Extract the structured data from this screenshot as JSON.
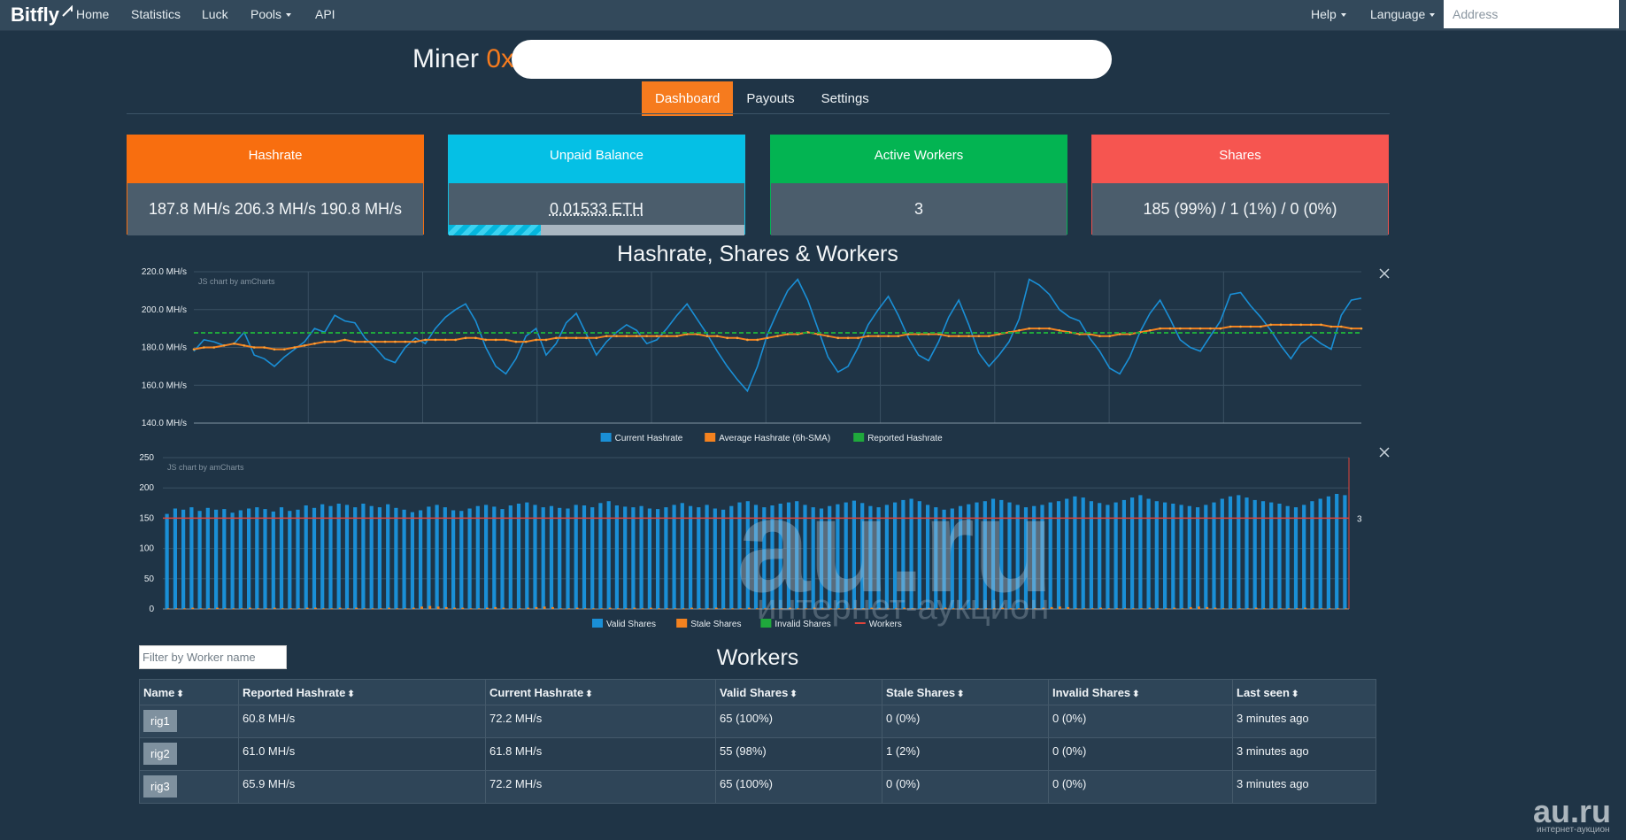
{
  "nav": {
    "brand": "Bitfly",
    "home": "Home",
    "statistics": "Statistics",
    "luck": "Luck",
    "pools": "Pools",
    "api": "API",
    "help": "Help",
    "language": "Language",
    "address_placeholder": "Address"
  },
  "miner": {
    "label": "Miner",
    "address_prefix": "0x"
  },
  "tabs": {
    "dashboard": "Dashboard",
    "payouts": "Payouts",
    "settings": "Settings"
  },
  "stats": {
    "hashrate": {
      "title": "Hashrate",
      "value": "187.8 MH/s 206.3 MH/s 190.8 MH/s"
    },
    "balance": {
      "title": "Unpaid Balance",
      "value": "0.01533 ETH",
      "progress": 0.31
    },
    "workers": {
      "title": "Active Workers",
      "value": "3"
    },
    "shares": {
      "title": "Shares",
      "value": "185 (99%) / 1 (1%) / 0 (0%)"
    }
  },
  "chart_section_title": "Hashrate, Shares & Workers",
  "chart_credit": "JS chart by amCharts",
  "chart_data": [
    {
      "type": "line",
      "ylim": [
        140,
        220
      ],
      "y_ticks": [
        "220.0 MH/s",
        "200.0 MH/s",
        "180.0 MH/s",
        "160.0 MH/s",
        "140.0 MH/s"
      ],
      "series": [
        {
          "name": "Current Hashrate",
          "color": "#1a8fd6",
          "values": [
            178,
            184,
            183,
            181,
            182,
            188,
            176,
            174,
            170,
            175,
            179,
            183,
            190,
            188,
            197,
            194,
            193,
            185,
            180,
            174,
            172,
            180,
            185,
            182,
            190,
            196,
            200,
            203,
            194,
            180,
            170,
            166,
            174,
            186,
            190,
            176,
            182,
            193,
            198,
            187,
            176,
            183,
            188,
            192,
            189,
            182,
            184,
            190,
            197,
            203,
            195,
            187,
            178,
            170,
            163,
            157,
            170,
            187,
            199,
            210,
            216,
            205,
            190,
            175,
            167,
            170,
            180,
            192,
            200,
            207,
            197,
            185,
            176,
            173,
            183,
            196,
            205,
            192,
            177,
            170,
            176,
            183,
            195,
            216,
            213,
            208,
            200,
            196,
            194,
            185,
            178,
            169,
            166,
            175,
            188,
            198,
            205,
            195,
            184,
            180,
            178,
            186,
            194,
            208,
            209,
            202,
            196,
            189,
            181,
            174,
            182,
            186,
            182,
            179,
            197,
            205,
            206
          ]
        },
        {
          "name": "Average Hashrate (6h-SMA)",
          "color": "#f4821f",
          "values": [
            179,
            180,
            180,
            181,
            182,
            181,
            180,
            180,
            179,
            179,
            180,
            181,
            182,
            183,
            183,
            184,
            183,
            183,
            183,
            183,
            183,
            183,
            183,
            184,
            184,
            184,
            184,
            185,
            185,
            184,
            184,
            184,
            183,
            183,
            184,
            184,
            185,
            185,
            185,
            185,
            185,
            186,
            186,
            186,
            186,
            186,
            186,
            186,
            186,
            187,
            187,
            186,
            186,
            185,
            185,
            184,
            184,
            185,
            186,
            187,
            187,
            188,
            187,
            186,
            185,
            185,
            185,
            186,
            186,
            186,
            186,
            187,
            187,
            187,
            187,
            186,
            186,
            186,
            186,
            186,
            187,
            188,
            189,
            190,
            190,
            190,
            189,
            188,
            187,
            187,
            186,
            186,
            187,
            187,
            188,
            189,
            190,
            190,
            190,
            190,
            190,
            190,
            190,
            191,
            191,
            191,
            191,
            192,
            192,
            192,
            192,
            192,
            192,
            191,
            191,
            190,
            190
          ]
        },
        {
          "name": "Reported Hashrate",
          "color": "#1fa83c",
          "values": [
            187.7,
            187.7,
            187.7,
            187.7,
            187.7,
            187.7,
            187.7,
            187.7,
            187.7,
            187.7,
            187.7,
            187.7,
            187.7,
            187.7,
            187.7,
            187.7,
            187.7,
            187.7,
            187.7,
            187.7,
            187.7,
            187.7,
            187.7,
            187.7,
            187.7,
            187.7,
            187.7,
            187.7,
            187.7,
            187.7,
            187.7,
            187.7,
            187.7,
            187.7,
            187.7,
            187.7,
            187.7,
            187.7,
            187.7,
            187.7,
            187.7,
            187.7,
            187.7,
            187.7,
            187.7,
            187.7,
            187.7,
            187.7,
            187.7,
            187.7,
            187.7,
            187.7,
            187.7,
            187.7,
            187.7,
            187.7,
            187.7,
            187.7,
            187.7,
            187.7,
            187.7,
            187.7,
            187.7,
            187.7,
            187.7,
            187.7,
            187.7,
            187.7,
            187.7,
            187.7,
            187.7,
            187.7,
            187.7,
            187.7,
            187.7,
            187.7,
            187.7,
            187.7,
            187.7,
            187.7,
            187.7,
            187.7,
            187.7,
            187.7,
            187.7,
            187.7,
            187.7,
            187.7,
            187.7,
            187.7,
            187.7,
            187.7,
            187.7,
            187.7,
            187.7,
            187.7,
            187.7,
            187.7,
            187.7,
            187.7,
            187.7,
            187.7,
            187.7,
            187.7,
            187.7,
            187.7,
            187.7,
            187.7,
            187.7,
            187.7,
            187.7,
            187.7,
            187.7,
            187.7,
            187.7,
            187.7,
            187.7
          ]
        }
      ],
      "grid": true,
      "legend": "bottom"
    },
    {
      "type": "bar",
      "ylim": [
        0,
        250
      ],
      "y_ticks": [
        "250",
        "200",
        "150",
        "100",
        "50",
        "0"
      ],
      "right_axis_label": "3",
      "series": [
        {
          "name": "Valid Shares",
          "color": "#1a8fd6",
          "values": [
            157,
            166,
            164,
            168,
            162,
            167,
            164,
            165,
            159,
            163,
            166,
            168,
            165,
            161,
            168,
            162,
            164,
            171,
            167,
            173,
            170,
            174,
            172,
            168,
            174,
            170,
            168,
            173,
            167,
            164,
            160,
            163,
            169,
            172,
            168,
            163,
            162,
            166,
            170,
            172,
            169,
            165,
            171,
            174,
            176,
            172,
            168,
            170,
            167,
            166,
            172,
            171,
            168,
            175,
            178,
            171,
            169,
            168,
            170,
            166,
            165,
            168,
            172,
            175,
            170,
            168,
            172,
            166,
            164,
            170,
            176,
            178,
            172,
            168,
            171,
            174,
            176,
            178,
            172,
            168,
            166,
            170,
            173,
            176,
            179,
            175,
            170,
            168,
            172,
            176,
            180,
            182,
            178,
            172,
            168,
            164,
            166,
            170,
            173,
            176,
            178,
            182,
            180,
            176,
            172,
            168,
            170,
            172,
            176,
            178,
            182,
            186,
            184,
            178,
            175,
            172,
            176,
            180,
            184,
            188,
            182,
            178,
            176,
            174,
            172,
            170,
            168,
            172,
            176,
            182,
            186,
            188,
            184,
            180,
            178,
            176,
            174,
            170,
            168,
            172,
            178,
            182,
            186,
            190,
            188
          ]
        },
        {
          "name": "Stale Shares",
          "color": "#f4821f",
          "values": [
            1,
            1,
            1,
            2,
            1,
            1,
            2,
            1,
            1,
            1,
            2,
            1,
            1,
            2,
            1,
            1,
            1,
            2,
            2,
            1,
            1,
            2,
            1,
            2,
            1,
            1,
            1,
            2,
            1,
            1,
            2,
            4,
            5,
            4,
            3,
            2,
            2,
            1,
            1,
            2,
            3,
            2,
            1,
            1,
            2,
            3,
            4,
            3,
            1,
            1,
            2,
            1,
            1,
            1,
            2,
            1,
            1,
            2,
            1,
            2,
            1,
            1,
            1,
            1,
            2,
            1,
            1,
            2,
            1,
            1,
            1,
            2,
            1,
            1,
            1,
            1,
            2,
            1,
            1,
            2,
            1,
            1,
            1,
            1,
            1,
            1,
            2,
            1,
            1,
            1,
            2,
            1,
            1,
            1,
            1,
            2,
            1,
            1,
            1,
            1,
            1,
            1,
            2,
            1,
            1,
            1,
            1,
            2,
            3,
            4,
            3,
            1,
            1,
            1,
            2,
            1,
            1,
            1,
            1,
            1,
            2,
            1,
            1,
            2,
            1,
            3,
            4,
            3,
            2,
            1,
            1,
            1,
            1,
            2,
            1,
            1,
            1,
            1,
            1,
            2,
            1,
            1,
            1,
            1,
            1
          ]
        },
        {
          "name": "Invalid Shares",
          "color": "#1fa83c",
          "values": [
            0,
            0,
            0,
            0,
            0,
            0,
            0,
            0,
            0,
            0,
            0,
            0,
            0,
            0,
            0,
            0,
            0,
            0,
            0,
            0,
            0,
            0,
            0,
            0,
            0,
            0,
            0,
            0,
            0,
            0,
            0,
            0,
            0,
            0,
            0,
            0,
            0,
            0,
            0,
            0,
            0,
            0,
            0,
            0,
            0,
            0,
            0,
            0,
            0,
            0,
            0,
            0,
            0,
            0,
            0,
            0,
            0,
            0,
            0,
            0,
            0,
            0,
            0,
            0,
            0,
            0,
            0,
            0,
            0,
            0,
            0,
            0,
            0,
            0,
            0,
            0,
            0,
            0,
            0,
            0,
            0,
            0,
            0,
            0,
            0,
            0,
            0,
            0,
            0,
            0,
            0,
            0,
            0,
            0,
            0,
            0,
            0,
            0,
            0,
            0,
            0,
            0,
            0,
            0,
            0,
            0,
            0,
            0,
            0,
            0,
            0,
            0,
            0,
            0,
            0,
            0,
            0,
            0,
            0,
            0,
            0,
            0,
            0,
            0,
            0,
            0,
            0,
            0,
            0,
            0,
            0,
            0,
            0,
            0,
            0,
            0,
            0,
            0,
            0,
            0,
            0,
            0,
            0,
            0,
            0
          ]
        },
        {
          "name": "Workers",
          "color": "#e0443a",
          "axis": "right",
          "constant": 3
        }
      ],
      "grid": true,
      "legend": "bottom"
    }
  ],
  "workers": {
    "title": "Workers",
    "filter_placeholder": "Filter by Worker name",
    "columns": [
      "Name",
      "Reported Hashrate",
      "Current Hashrate",
      "Valid Shares",
      "Stale Shares",
      "Invalid Shares",
      "Last seen"
    ],
    "rows": [
      [
        "rig1",
        "60.8 MH/s",
        "72.2 MH/s",
        "65 (100%)",
        "0 (0%)",
        "0 (0%)",
        "3 minutes ago"
      ],
      [
        "rig2",
        "61.0 MH/s",
        "61.8 MH/s",
        "55 (98%)",
        "1 (2%)",
        "0 (0%)",
        "3 minutes ago"
      ],
      [
        "rig3",
        "65.9 MH/s",
        "72.2 MH/s",
        "65 (100%)",
        "0 (0%)",
        "0 (0%)",
        "3 minutes ago"
      ]
    ]
  },
  "watermark": {
    "big": "au.ru",
    "sub": "интернет-аукцион",
    "corner": "au.ru",
    "corner_sub": "интернет-аукцион"
  }
}
